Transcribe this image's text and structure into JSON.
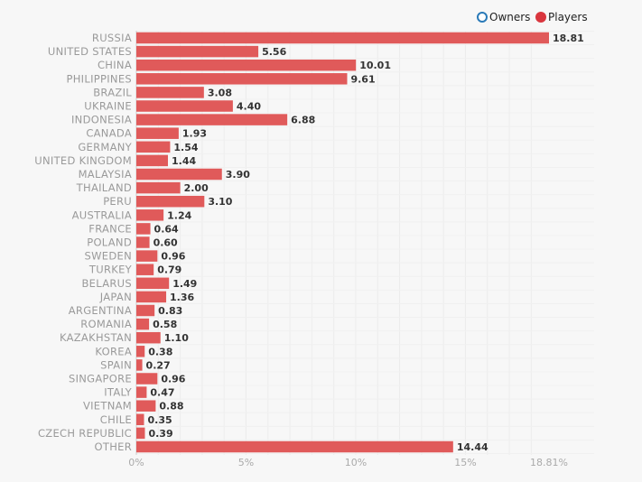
{
  "chart_data": {
    "type": "bar",
    "orientation": "horizontal",
    "categories": [
      "RUSSIA",
      "UNITED STATES",
      "CHINA",
      "PHILIPPINES",
      "BRAZIL",
      "UKRAINE",
      "INDONESIA",
      "CANADA",
      "GERMANY",
      "UNITED KINGDOM",
      "MALAYSIA",
      "THAILAND",
      "PERU",
      "AUSTRALIA",
      "FRANCE",
      "POLAND",
      "SWEDEN",
      "TURKEY",
      "BELARUS",
      "JAPAN",
      "ARGENTINA",
      "ROMANIA",
      "KAZAKHSTAN",
      "KOREA",
      "SPAIN",
      "SINGAPORE",
      "ITALY",
      "VIETNAM",
      "CHILE",
      "CZECH REPUBLIC",
      "OTHER"
    ],
    "series": [
      {
        "name": "Players",
        "color": "#e05a5a",
        "values": [
          18.81,
          5.56,
          10.01,
          9.61,
          3.08,
          4.4,
          6.88,
          1.93,
          1.54,
          1.44,
          3.9,
          2.0,
          3.1,
          1.24,
          0.64,
          0.6,
          0.96,
          0.79,
          1.49,
          1.36,
          0.83,
          0.58,
          1.1,
          0.38,
          0.27,
          0.96,
          0.47,
          0.88,
          0.35,
          0.39,
          14.44
        ],
        "value_labels": [
          "18.81",
          "5.56",
          "10.01",
          "9.61",
          "3.08",
          "4.40",
          "6.88",
          "1.93",
          "1.54",
          "1.44",
          "3.90",
          "2.00",
          "3.10",
          "1.24",
          "0.64",
          "0.60",
          "0.96",
          "0.79",
          "1.49",
          "1.36",
          "0.83",
          "0.58",
          "1.10",
          "0.38",
          "0.27",
          "0.96",
          "0.47",
          "0.88",
          "0.35",
          "0.39",
          "14.44"
        ]
      }
    ],
    "x_ticks": [
      0,
      5,
      10,
      15,
      18.81
    ],
    "x_tick_labels": [
      "0%",
      "5%",
      "10%",
      "15%",
      "18.81%"
    ],
    "xlim": [
      0,
      18.81
    ],
    "grid": true,
    "legend": [
      {
        "name": "Owners",
        "style": "hollow",
        "color": "#2a7ab8"
      },
      {
        "name": "Players",
        "style": "filled",
        "color": "#d9363e"
      }
    ],
    "legend_position": "top-right"
  }
}
